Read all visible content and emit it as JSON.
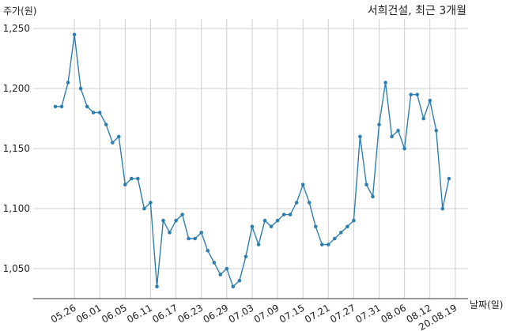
{
  "chart_data": {
    "type": "line",
    "title": "서희건설, 최근 3개월",
    "ylabel": "주가(원)",
    "xlabel": "날짜(일)",
    "ylim": [
      1025,
      1258
    ],
    "yticks": [
      1050,
      1100,
      1150,
      1200,
      1250
    ],
    "ytick_labels": [
      "1,050",
      "1,100",
      "1,150",
      "1,200",
      "1,250"
    ],
    "xtick_labels": [
      "05.26",
      "06.01",
      "06.05",
      "06.11",
      "06.17",
      "06.23",
      "06.29",
      "07.03",
      "07.09",
      "07.15",
      "07.21",
      "07.27",
      "07.31",
      "08.06",
      "08.12",
      "20.08.19"
    ],
    "xtick_index": [
      3,
      7,
      11,
      15,
      19,
      23,
      27,
      31,
      35,
      39,
      43,
      47,
      51,
      55,
      59,
      63
    ],
    "grid": true,
    "series": [
      {
        "color": "#2e7fb0",
        "values": [
          1185,
          1185,
          1205,
          1245,
          1200,
          1185,
          1180,
          1180,
          1170,
          1155,
          1160,
          1120,
          1125,
          1125,
          1100,
          1105,
          1035,
          1090,
          1080,
          1090,
          1095,
          1075,
          1075,
          1080,
          1065,
          1055,
          1045,
          1050,
          1035,
          1040,
          1060,
          1085,
          1070,
          1090,
          1085,
          1090,
          1095,
          1095,
          1105,
          1120,
          1105,
          1085,
          1070,
          1070,
          1075,
          1080,
          1085,
          1090,
          1160,
          1120,
          1110,
          1170,
          1205,
          1160,
          1165,
          1150,
          1195,
          1195,
          1175,
          1190,
          1165,
          1100,
          1125
        ]
      }
    ]
  }
}
